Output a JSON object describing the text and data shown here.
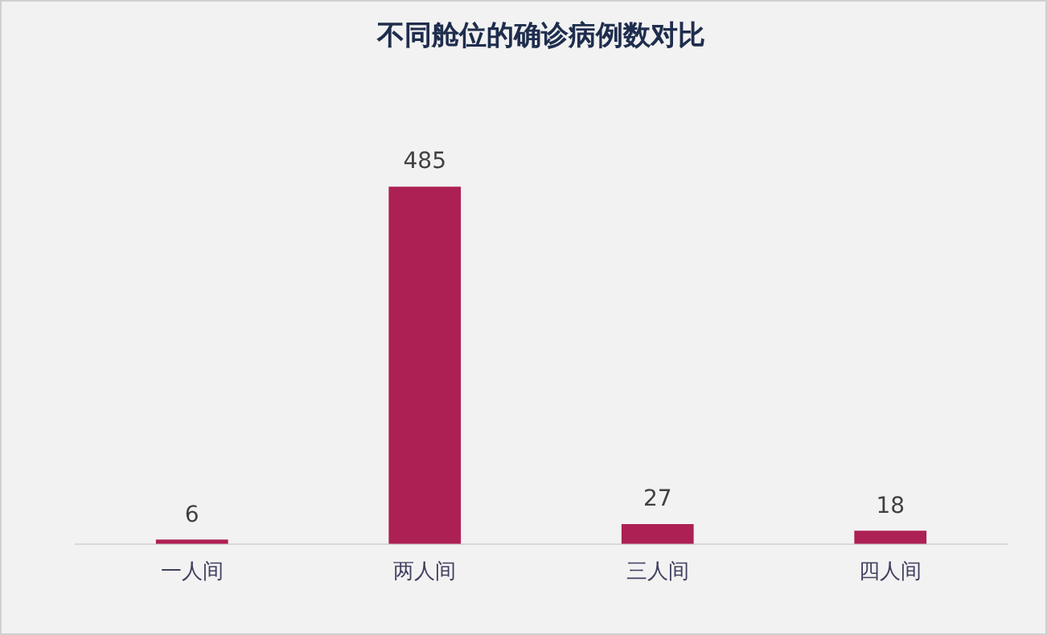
{
  "chart_data": {
    "type": "bar",
    "title": "不同舱位的确诊病例数对比",
    "categories": [
      "一人间",
      "两人间",
      "三人间",
      "四人间"
    ],
    "values": [
      6,
      485,
      27,
      18
    ],
    "color": "#ad2054",
    "data_labels": true,
    "grid": false,
    "legend": false
  }
}
